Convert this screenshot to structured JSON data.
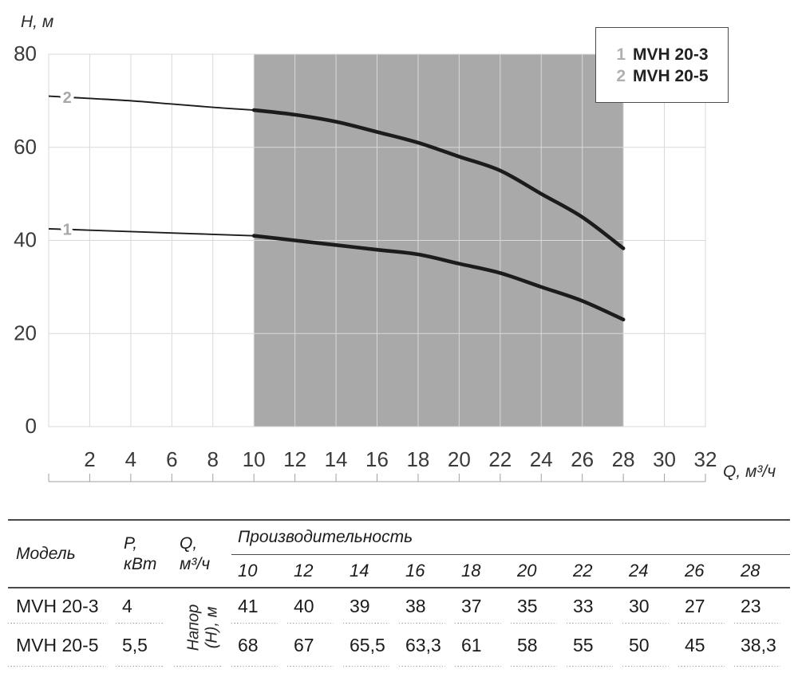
{
  "chart_data": {
    "type": "line",
    "title": "",
    "xlabel": "Q, м³/ч",
    "ylabel": "H, м",
    "xlim": [
      0,
      32
    ],
    "ylim": [
      0,
      80
    ],
    "x_ticks": [
      2,
      4,
      6,
      8,
      10,
      12,
      14,
      16,
      18,
      20,
      22,
      24,
      26,
      28,
      30,
      32
    ],
    "y_ticks": [
      0,
      20,
      40,
      60,
      80
    ],
    "x_gridlines": [
      2,
      4,
      6,
      8,
      10,
      12,
      14,
      16,
      18,
      20,
      22,
      24,
      26,
      28,
      30
    ],
    "y_gridlines": [
      20,
      40,
      60
    ],
    "grid": true,
    "grid_color": "#d9d9d9",
    "curve_color": "#1c1c1c",
    "ruler_color": "#a0a0a0",
    "shaded_region": {
      "x_from": 10,
      "x_to": 28,
      "color": "#a9a9a9"
    },
    "series": [
      {
        "marker": "1",
        "name": "MVH 20-3",
        "bold_from_x": 10,
        "x": [
          0,
          2,
          4,
          6,
          8,
          10,
          12,
          14,
          16,
          18,
          20,
          22,
          24,
          26,
          28
        ],
        "y": [
          42.5,
          42.2,
          41.9,
          41.6,
          41.3,
          41,
          40,
          39,
          38,
          37,
          35,
          33,
          30,
          27,
          23
        ]
      },
      {
        "marker": "2",
        "name": "MVH 20-5",
        "bold_from_x": 10,
        "x": [
          0,
          2,
          4,
          6,
          8,
          10,
          12,
          14,
          16,
          18,
          20,
          22,
          24,
          26,
          28
        ],
        "y": [
          71,
          70.5,
          70,
          69.3,
          68.6,
          68,
          67,
          65.5,
          63.3,
          61,
          58,
          55,
          50,
          45,
          38.3
        ]
      }
    ],
    "legend": {
      "position": "top-right",
      "entries": [
        {
          "marker": "1",
          "label": "MVH 20-3"
        },
        {
          "marker": "2",
          "label": "MVH 20-5"
        }
      ]
    }
  },
  "table": {
    "headers": {
      "model": "Модель",
      "power_line1": "P,",
      "power_line2": "кВт",
      "flow_line1": "Q,",
      "flow_line2": "м³/ч",
      "performance": "Производительность",
      "flow_values": [
        "10",
        "12",
        "14",
        "16",
        "18",
        "20",
        "22",
        "24",
        "26",
        "28"
      ],
      "head_label_line1": "Напор",
      "head_label_line2": "(H), м"
    },
    "rows": [
      {
        "model": "MVH 20-3",
        "power": "4",
        "values": [
          "41",
          "40",
          "39",
          "38",
          "37",
          "35",
          "33",
          "30",
          "27",
          "23"
        ]
      },
      {
        "model": "MVH 20-5",
        "power": "5,5",
        "values": [
          "68",
          "67",
          "65,5",
          "63,3",
          "61",
          "58",
          "55",
          "50",
          "45",
          "38,3"
        ]
      }
    ]
  }
}
